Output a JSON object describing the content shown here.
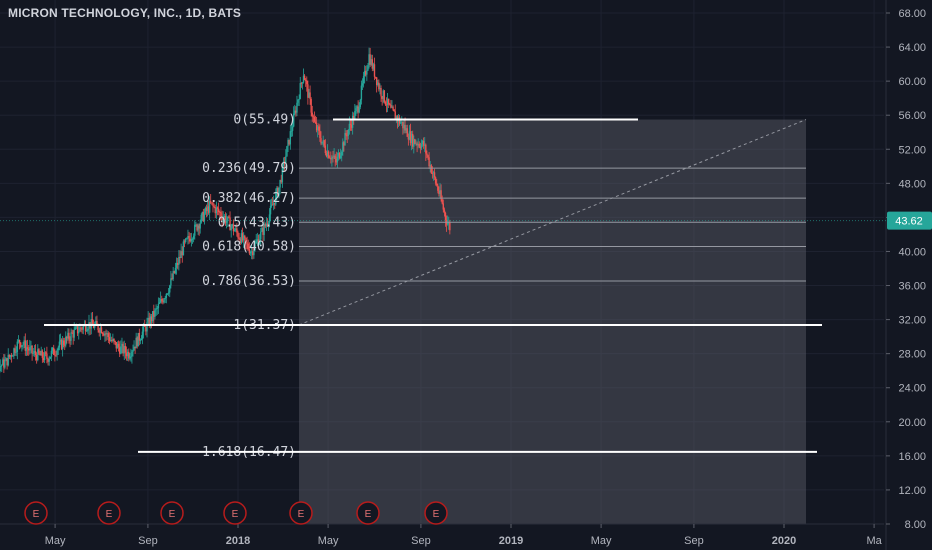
{
  "header": {
    "title": "MICRON TECHNOLOGY, INC., 1D, BATS"
  },
  "colors": {
    "background": "#131722",
    "grid": "#1e2230",
    "up": "#26a69a",
    "down": "#ef5350",
    "fib_line": "#9598a1",
    "price_tag": "#26a69a",
    "earnings": "#b71c1c"
  },
  "chart_data": {
    "type": "candlestick",
    "symbol": "MICRON TECHNOLOGY, INC.",
    "interval": "1D",
    "exchange": "BATS",
    "last_price": "43.62",
    "y_ticks": [
      "8.00",
      "12.00",
      "16.00",
      "20.00",
      "24.00",
      "28.00",
      "32.00",
      "36.00",
      "40.00",
      "44.00",
      "48.00",
      "52.00",
      "56.00",
      "60.00",
      "64.00",
      "68.00"
    ],
    "ylim": [
      8,
      68
    ],
    "x_ticks": [
      "May",
      "Sep",
      "2018",
      "May",
      "Sep",
      "2019",
      "May",
      "Sep",
      "2020",
      "Ma"
    ],
    "fib_retracement": {
      "start_price": 31.37,
      "end_price": 55.49,
      "levels": [
        {
          "label": "0(55.49)",
          "price": 55.49
        },
        {
          "label": "0.236(49.79)",
          "price": 49.79
        },
        {
          "label": "0.382(46.27)",
          "price": 46.27
        },
        {
          "label": "0.5(43.43)",
          "price": 43.43
        },
        {
          "label": "0.618(40.58)",
          "price": 40.58
        },
        {
          "label": "0.786(36.53)",
          "price": 36.53
        },
        {
          "label": "1(31.37)",
          "price": 31.37
        },
        {
          "label": "1.618(16.47)",
          "price": 16.47
        }
      ]
    },
    "horizontal_lines": [
      55.49,
      31.37,
      16.47
    ],
    "earnings_markers": [
      "E",
      "E",
      "E",
      "E",
      "E",
      "E",
      "E"
    ],
    "price_path": [
      [
        2017.0,
        24.5
      ],
      [
        2017.05,
        23.5
      ],
      [
        2017.1,
        26.0
      ],
      [
        2017.15,
        27.0
      ],
      [
        2017.2,
        29.5
      ],
      [
        2017.25,
        28.0
      ],
      [
        2017.3,
        27.5
      ],
      [
        2017.35,
        29.0
      ],
      [
        2017.4,
        30.5
      ],
      [
        2017.45,
        31.5
      ],
      [
        2017.5,
        31.0
      ],
      [
        2017.55,
        29.0
      ],
      [
        2017.6,
        28.0
      ],
      [
        2017.65,
        30.5
      ],
      [
        2017.7,
        33.0
      ],
      [
        2017.75,
        36.0
      ],
      [
        2017.8,
        40.5
      ],
      [
        2017.85,
        43.0
      ],
      [
        2017.9,
        45.5
      ],
      [
        2017.95,
        44.0
      ],
      [
        2018.0,
        42.0
      ],
      [
        2018.05,
        40.0
      ],
      [
        2018.1,
        43.0
      ],
      [
        2018.15,
        47.5
      ],
      [
        2018.2,
        55.0
      ],
      [
        2018.24,
        61.0
      ],
      [
        2018.28,
        55.0
      ],
      [
        2018.32,
        52.0
      ],
      [
        2018.36,
        50.5
      ],
      [
        2018.4,
        54.0
      ],
      [
        2018.44,
        57.0
      ],
      [
        2018.48,
        63.0
      ],
      [
        2018.52,
        59.0
      ],
      [
        2018.56,
        56.5
      ],
      [
        2018.6,
        55.0
      ],
      [
        2018.64,
        53.0
      ],
      [
        2018.68,
        52.5
      ],
      [
        2018.72,
        48.5
      ],
      [
        2018.74,
        46.5
      ],
      [
        2018.76,
        44.0
      ],
      [
        2018.78,
        42.5
      ]
    ],
    "x_range": [
      2017.0,
      2021.25
    ]
  }
}
